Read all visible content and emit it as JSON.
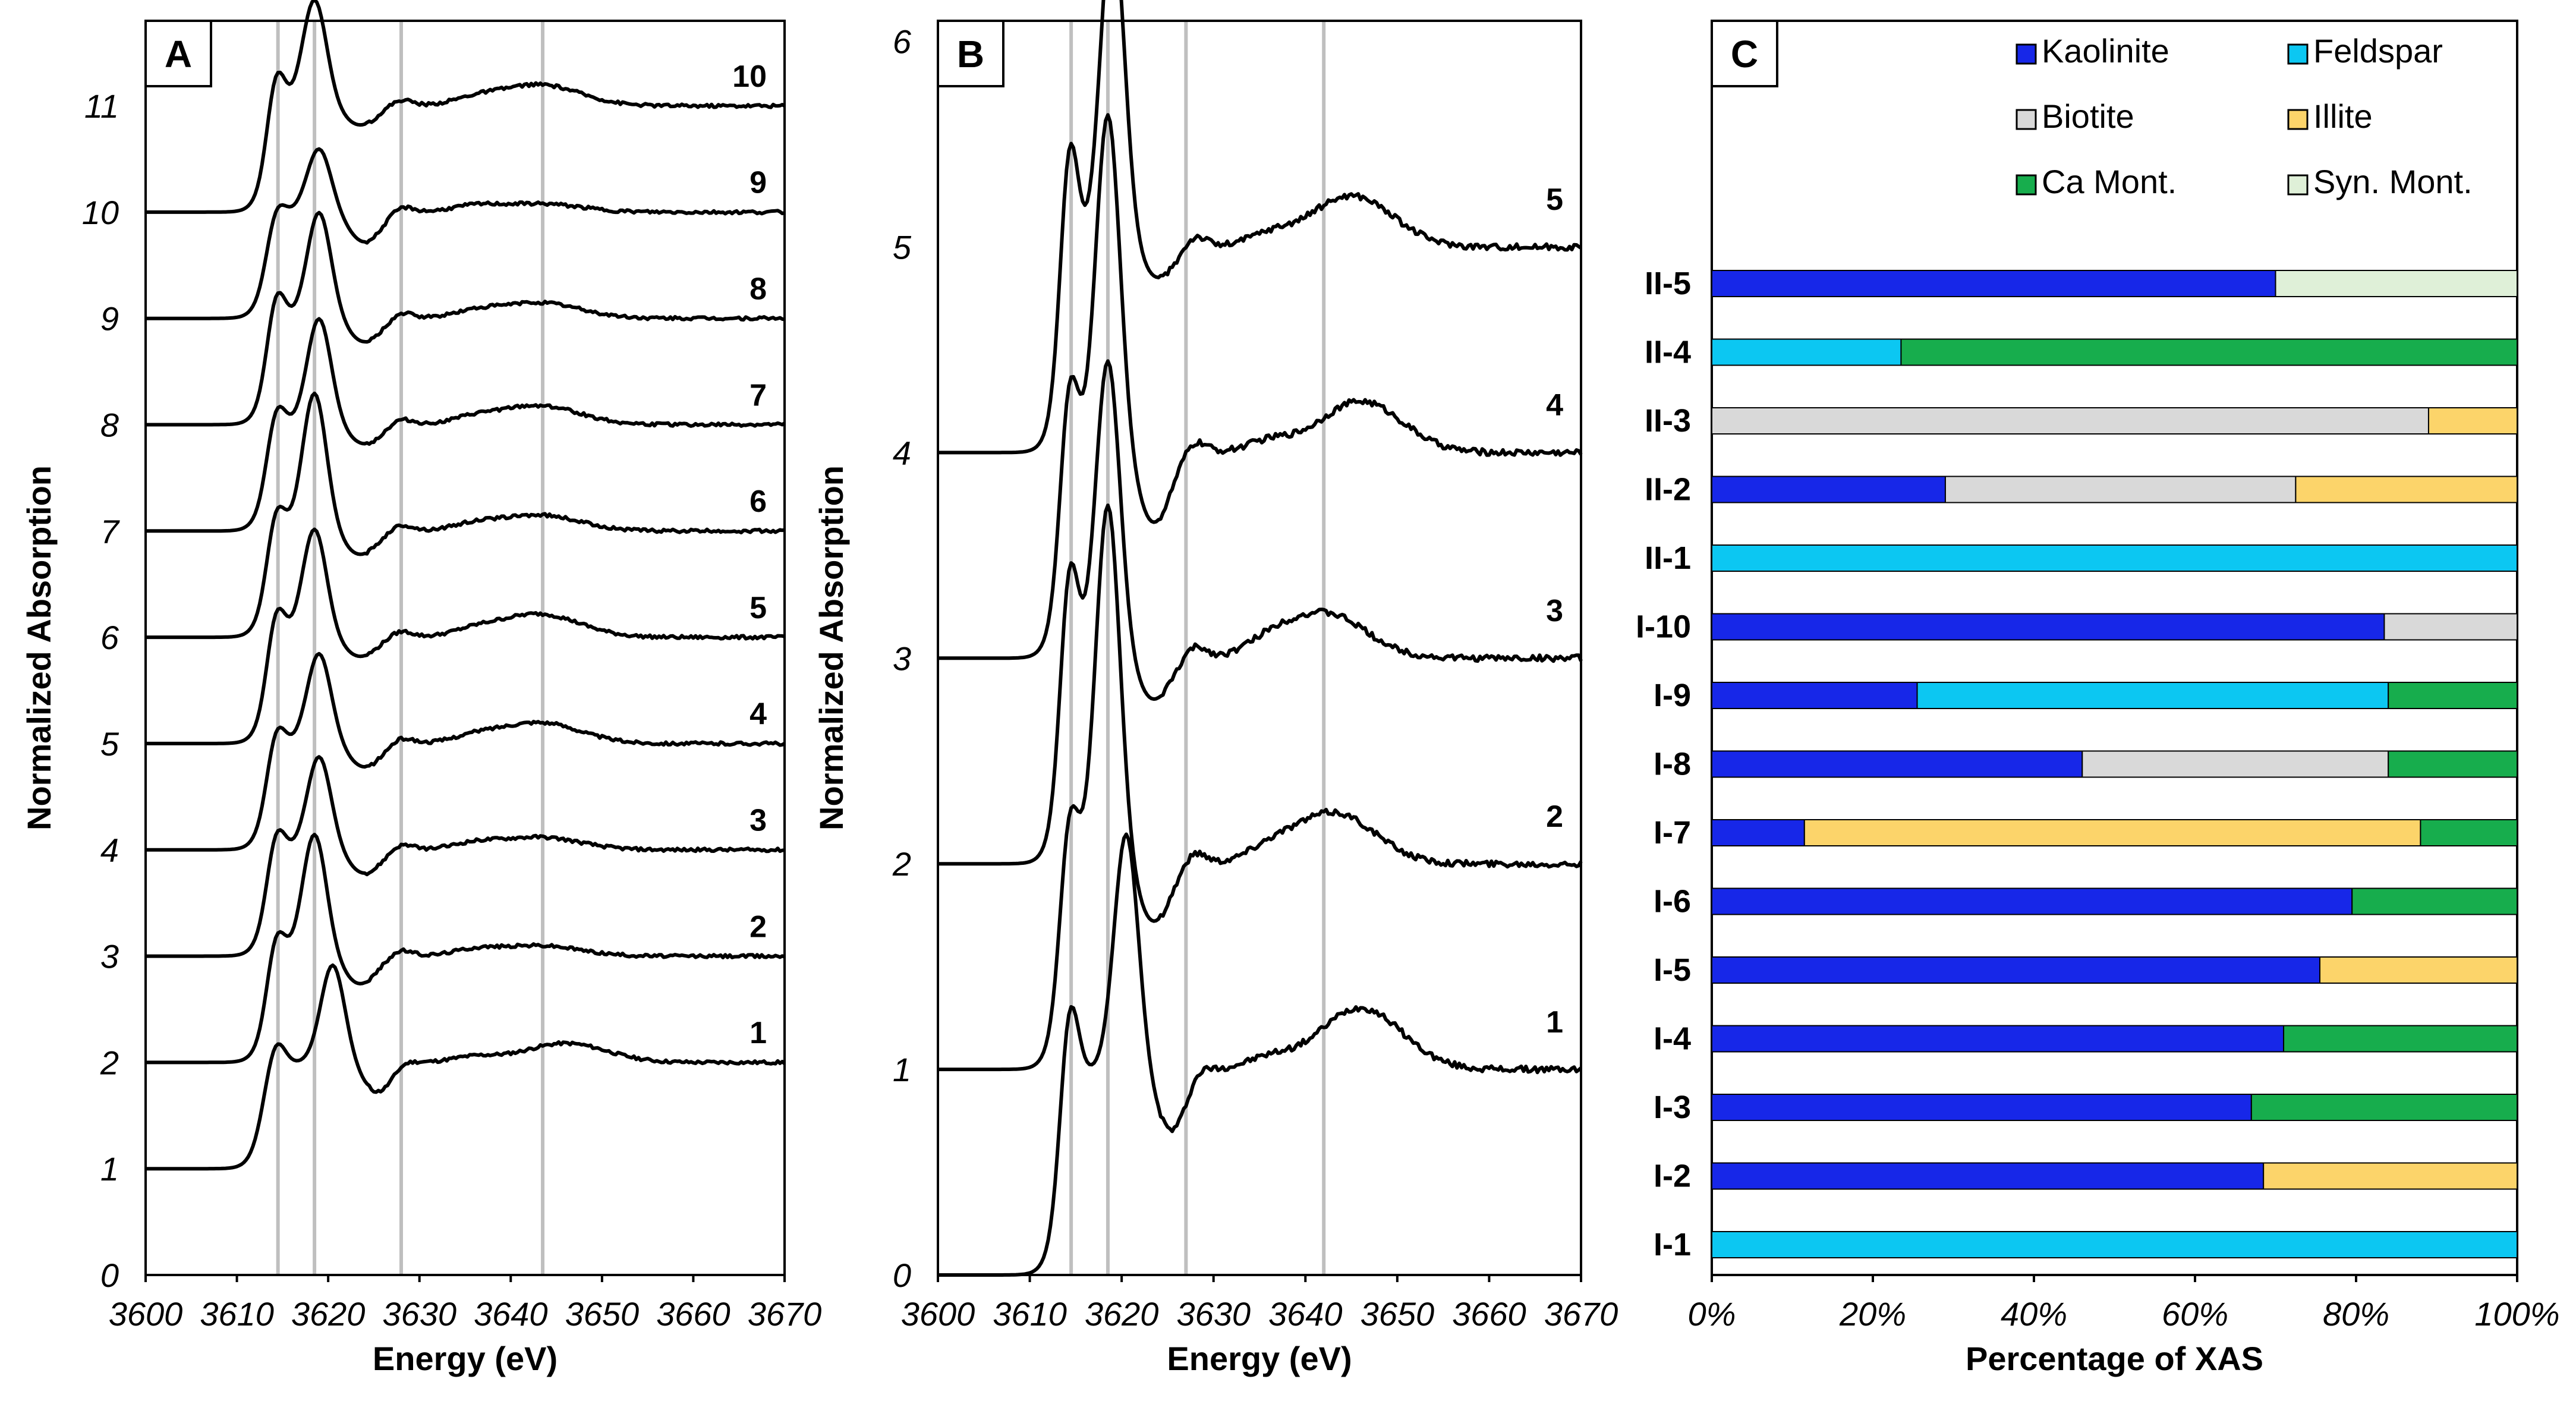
{
  "colors": {
    "Kaolinite": "#1727e8",
    "Feldspar": "#0cc7f2",
    "Biotite": "#d9d9d9",
    "Illite": "#fcd46a",
    "Ca Mont.": "#17ad4d",
    "Syn. Mont.": "#dff0d8",
    "reference_line": "#bfbfbf"
  },
  "chart_data": [
    {
      "panel": "A",
      "type": "line",
      "xlabel": "Energy (eV)",
      "ylabel": "Normalized Absorption",
      "xlim": [
        3600,
        3670
      ],
      "ylim": [
        0,
        11.8
      ],
      "xticks": [
        "3600",
        "3610",
        "3620",
        "3630",
        "3640",
        "3650",
        "3660",
        "3670"
      ],
      "yticks": [
        "0",
        "1",
        "2",
        "3",
        "4",
        "5",
        "6",
        "7",
        "8",
        "9",
        "10",
        "11"
      ],
      "reference_lines_eV": [
        3614.5,
        3618.5,
        3628,
        3643.5
      ],
      "series": [
        {
          "name": "1",
          "offset": 1,
          "edge": 3611.5,
          "pre": 0.85,
          "peak": 1.22,
          "peak_eV": 3620.5,
          "dip": 0.72,
          "post": 0.18,
          "hump_eV": 3646
        },
        {
          "name": "2",
          "offset": 2,
          "edge": 3612.0,
          "pre": 0.95,
          "peak": 1.45,
          "peak_eV": 3618.5,
          "dip": 0.74,
          "post": 0.1,
          "hump_eV": 3643
        },
        {
          "name": "3",
          "offset": 3,
          "edge": 3612.0,
          "pre": 0.92,
          "peak": 1.18,
          "peak_eV": 3619.0,
          "dip": 0.78,
          "post": 0.12,
          "hump_eV": 3643
        },
        {
          "name": "4",
          "offset": 4,
          "edge": 3612.0,
          "pre": 0.88,
          "peak": 1.15,
          "peak_eV": 3619.0,
          "dip": 0.78,
          "post": 0.2,
          "hump_eV": 3643
        },
        {
          "name": "5",
          "offset": 5,
          "edge": 3612.0,
          "pre": 1.0,
          "peak": 1.32,
          "peak_eV": 3618.5,
          "dip": 0.82,
          "post": 0.22,
          "hump_eV": 3643
        },
        {
          "name": "6",
          "offset": 6,
          "edge": 3612.0,
          "pre": 0.95,
          "peak": 1.6,
          "peak_eV": 3618.5,
          "dip": 0.78,
          "post": 0.15,
          "hump_eV": 3643
        },
        {
          "name": "7",
          "offset": 7,
          "edge": 3612.0,
          "pre": 0.9,
          "peak": 1.3,
          "peak_eV": 3619.0,
          "dip": 0.82,
          "post": 0.18,
          "hump_eV": 3643
        },
        {
          "name": "8",
          "offset": 8,
          "edge": 3612.0,
          "pre": 0.98,
          "peak": 1.3,
          "peak_eV": 3619.0,
          "dip": 0.78,
          "post": 0.15,
          "hump_eV": 3643
        },
        {
          "name": "9",
          "offset": 9,
          "edge": 3612.0,
          "pre": 0.78,
          "peak": 0.9,
          "peak_eV": 3619.0,
          "dip": 0.72,
          "post": 0.08,
          "hump_eV": 3643
        },
        {
          "name": "10",
          "offset": 10,
          "edge": 3612.0,
          "pre": 1.05,
          "peak": 1.3,
          "peak_eV": 3618.5,
          "dip": 0.82,
          "post": 0.2,
          "hump_eV": 3643
        }
      ]
    },
    {
      "panel": "B",
      "type": "line",
      "xlabel": "Energy (eV)",
      "ylabel": "Normalized Absorption",
      "xlim": [
        3600,
        3670
      ],
      "ylim": [
        0,
        6.1
      ],
      "xticks": [
        "3600",
        "3610",
        "3620",
        "3630",
        "3640",
        "3650",
        "3660",
        "3670"
      ],
      "yticks": [
        "0",
        "1",
        "2",
        "3",
        "4",
        "5",
        "6"
      ],
      "reference_lines_eV": [
        3614.5,
        3618.5,
        3627,
        3642
      ],
      "series": [
        {
          "name": "1",
          "offset": 0,
          "edge": 3612.0,
          "pre": 1.05,
          "peak": 1.45,
          "peak_eV": 3620.5,
          "dip": 0.7,
          "post": 0.3,
          "hump_eV": 3646
        },
        {
          "name": "2",
          "offset": 1,
          "edge": 3612.0,
          "pre": 1.0,
          "peak": 2.05,
          "peak_eV": 3618.5,
          "dip": 0.72,
          "post": 0.25,
          "hump_eV": 3643
        },
        {
          "name": "3",
          "offset": 2,
          "edge": 3612.0,
          "pre": 1.2,
          "peak": 1.75,
          "peak_eV": 3618.5,
          "dip": 0.8,
          "post": 0.22,
          "hump_eV": 3642
        },
        {
          "name": "4",
          "offset": 3,
          "edge": 3612.0,
          "pre": 1.1,
          "peak": 1.95,
          "peak_eV": 3618.5,
          "dip": 0.66,
          "post": 0.25,
          "hump_eV": 3646
        },
        {
          "name": "5",
          "offset": 4,
          "edge": 3612.0,
          "pre": 1.25,
          "peak": 1.9,
          "peak_eV": 3619.0,
          "dip": 0.85,
          "post": 0.25,
          "hump_eV": 3645
        }
      ]
    },
    {
      "panel": "C",
      "type": "bar",
      "orientation": "horizontal-stacked",
      "xlabel": "Percentage of XAS",
      "xlim": [
        0,
        100
      ],
      "xticks": [
        "0%",
        "20%",
        "40%",
        "60%",
        "80%",
        "100%"
      ],
      "legend_position": "top-right",
      "legend": [
        "Kaolinite",
        "Feldspar",
        "Biotite",
        "Illite",
        "Ca Mont.",
        "Syn. Mont."
      ],
      "categories": [
        "II-5",
        "II-4",
        "II-3",
        "II-2",
        "II-1",
        "I-10",
        "I-9",
        "I-8",
        "I-7",
        "I-6",
        "I-5",
        "I-4",
        "I-3",
        "I-2",
        "I-1"
      ],
      "series": [
        {
          "name": "Kaolinite",
          "values": [
            70,
            0,
            0,
            29,
            0,
            83.5,
            25.5,
            46,
            11.5,
            79.5,
            75.5,
            71,
            67,
            68.5,
            0
          ]
        },
        {
          "name": "Feldspar",
          "values": [
            0,
            23.5,
            0,
            0,
            100,
            0,
            58.5,
            0,
            0,
            0,
            0,
            0,
            0,
            0,
            100
          ]
        },
        {
          "name": "Biotite",
          "values": [
            0,
            0,
            89,
            43.5,
            0,
            16.5,
            0,
            38,
            0,
            0,
            0,
            0,
            0,
            0,
            0
          ]
        },
        {
          "name": "Illite",
          "values": [
            0,
            0,
            11,
            27.5,
            0,
            0,
            0,
            0,
            76.5,
            0,
            24.5,
            0,
            0,
            31.5,
            0
          ]
        },
        {
          "name": "Ca Mont.",
          "values": [
            0,
            76.5,
            0,
            0,
            0,
            0,
            16,
            16,
            12,
            20.5,
            0,
            29,
            33,
            0,
            0
          ]
        },
        {
          "name": "Syn. Mont.",
          "values": [
            30,
            0,
            0,
            0,
            0,
            0,
            0,
            0,
            0,
            0,
            0,
            0,
            0,
            0,
            0
          ]
        }
      ]
    }
  ]
}
